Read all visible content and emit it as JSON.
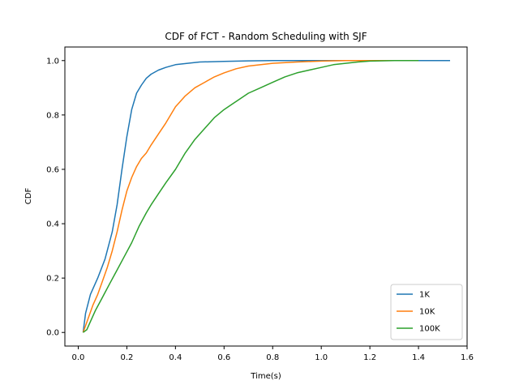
{
  "chart_data": {
    "type": "line",
    "title": "CDF of FCT - Random Scheduling with SJF",
    "xlabel": "Time(s)",
    "ylabel": "CDF",
    "xlim": [
      -0.055,
      1.6
    ],
    "ylim": [
      -0.05,
      1.05
    ],
    "xticks": [
      "0.0",
      "0.2",
      "0.4",
      "0.6",
      "0.8",
      "1.0",
      "1.2",
      "1.4",
      "1.6"
    ],
    "yticks": [
      "0.0",
      "0.2",
      "0.4",
      "0.6",
      "0.8",
      "1.0"
    ],
    "grid": false,
    "legend_position": "lower-right",
    "series": [
      {
        "name": "1K",
        "color": "#1f77b4",
        "x": [
          0.02,
          0.03,
          0.05,
          0.08,
          0.11,
          0.14,
          0.16,
          0.18,
          0.2,
          0.22,
          0.24,
          0.26,
          0.28,
          0.3,
          0.33,
          0.36,
          0.4,
          0.45,
          0.5,
          0.6,
          0.7,
          0.8,
          1.0,
          1.2,
          1.4,
          1.53
        ],
        "y": [
          0.0,
          0.07,
          0.14,
          0.2,
          0.27,
          0.37,
          0.47,
          0.6,
          0.72,
          0.82,
          0.88,
          0.91,
          0.935,
          0.95,
          0.965,
          0.975,
          0.985,
          0.99,
          0.995,
          0.997,
          0.999,
          1.0,
          1.0,
          1.0,
          1.0,
          1.0
        ]
      },
      {
        "name": "10K",
        "color": "#ff7f0e",
        "x": [
          0.02,
          0.04,
          0.06,
          0.08,
          0.1,
          0.12,
          0.14,
          0.16,
          0.18,
          0.2,
          0.22,
          0.24,
          0.26,
          0.28,
          0.3,
          0.33,
          0.36,
          0.4,
          0.44,
          0.48,
          0.52,
          0.56,
          0.6,
          0.65,
          0.7,
          0.8,
          0.9,
          1.0,
          1.1,
          1.2,
          1.39
        ],
        "y": [
          0.0,
          0.05,
          0.1,
          0.14,
          0.19,
          0.24,
          0.3,
          0.37,
          0.45,
          0.52,
          0.57,
          0.61,
          0.64,
          0.66,
          0.69,
          0.73,
          0.77,
          0.83,
          0.87,
          0.9,
          0.92,
          0.94,
          0.955,
          0.97,
          0.98,
          0.99,
          0.995,
          0.998,
          1.0,
          1.0,
          1.0
        ]
      },
      {
        "name": "100K",
        "color": "#2ca02c",
        "x": [
          0.02,
          0.035,
          0.05,
          0.07,
          0.1,
          0.13,
          0.16,
          0.19,
          0.22,
          0.25,
          0.28,
          0.3,
          0.33,
          0.36,
          0.4,
          0.44,
          0.48,
          0.52,
          0.56,
          0.6,
          0.65,
          0.7,
          0.75,
          0.8,
          0.85,
          0.9,
          0.95,
          1.0,
          1.05,
          1.1,
          1.15,
          1.2,
          1.3,
          1.4
        ],
        "y": [
          0.0,
          0.01,
          0.04,
          0.08,
          0.13,
          0.18,
          0.23,
          0.28,
          0.33,
          0.39,
          0.44,
          0.47,
          0.51,
          0.55,
          0.6,
          0.66,
          0.71,
          0.75,
          0.79,
          0.82,
          0.85,
          0.88,
          0.9,
          0.92,
          0.94,
          0.955,
          0.965,
          0.975,
          0.985,
          0.99,
          0.995,
          0.998,
          1.0,
          1.0
        ]
      }
    ]
  }
}
